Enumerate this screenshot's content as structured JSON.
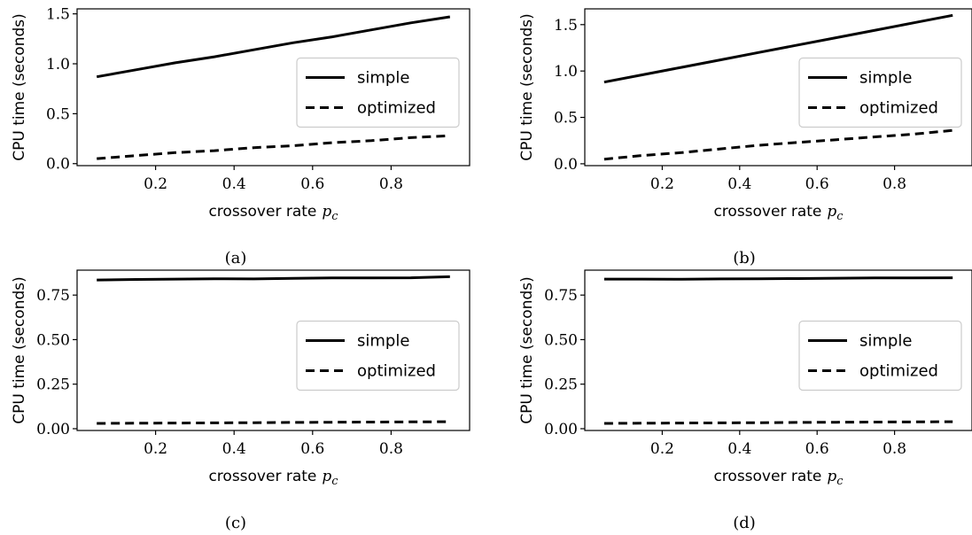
{
  "chart_data": [
    {
      "type": "line",
      "caption": "(a)",
      "xlabel": "crossover rate",
      "xlabel_symbol": "p",
      "xlabel_sub": "c",
      "ylabel": "CPU time (seconds)",
      "xlim": [
        0.0,
        1.0
      ],
      "ylim": [
        -0.02,
        1.55
      ],
      "xticks": [
        0.2,
        0.4,
        0.6,
        0.8
      ],
      "xtick_labels": [
        "0.2",
        "0.4",
        "0.6",
        "0.8"
      ],
      "yticks": [
        0.0,
        0.5,
        1.0,
        1.5
      ],
      "ytick_labels": [
        "0.0",
        "0.5",
        "1.0",
        "1.5"
      ],
      "legend_position": "center-right",
      "series": [
        {
          "name": "simple",
          "style": "solid",
          "x": [
            0.05,
            0.15,
            0.25,
            0.35,
            0.45,
            0.55,
            0.65,
            0.75,
            0.85,
            0.95
          ],
          "y": [
            0.87,
            0.94,
            1.01,
            1.07,
            1.14,
            1.21,
            1.27,
            1.34,
            1.41,
            1.47
          ]
        },
        {
          "name": "optimized",
          "style": "dashed",
          "x": [
            0.05,
            0.15,
            0.25,
            0.35,
            0.45,
            0.55,
            0.65,
            0.75,
            0.85,
            0.95
          ],
          "y": [
            0.05,
            0.08,
            0.11,
            0.13,
            0.16,
            0.18,
            0.21,
            0.23,
            0.26,
            0.28
          ]
        }
      ]
    },
    {
      "type": "line",
      "caption": "(b)",
      "xlabel": "crossover rate",
      "xlabel_symbol": "p",
      "xlabel_sub": "c",
      "ylabel": "CPU time (seconds)",
      "xlim": [
        0.0,
        1.0
      ],
      "ylim": [
        -0.02,
        1.67
      ],
      "xticks": [
        0.2,
        0.4,
        0.6,
        0.8
      ],
      "xtick_labels": [
        "0.2",
        "0.4",
        "0.6",
        "0.8"
      ],
      "yticks": [
        0.0,
        0.5,
        1.0,
        1.5
      ],
      "ytick_labels": [
        "0.0",
        "0.5",
        "1.0",
        "1.5"
      ],
      "legend_position": "center-right",
      "series": [
        {
          "name": "simple",
          "style": "solid",
          "x": [
            0.05,
            0.15,
            0.25,
            0.35,
            0.45,
            0.55,
            0.65,
            0.75,
            0.85,
            0.95
          ],
          "y": [
            0.88,
            0.96,
            1.04,
            1.12,
            1.2,
            1.28,
            1.36,
            1.44,
            1.52,
            1.6
          ]
        },
        {
          "name": "optimized",
          "style": "dashed",
          "x": [
            0.05,
            0.15,
            0.25,
            0.35,
            0.45,
            0.55,
            0.65,
            0.75,
            0.85,
            0.95
          ],
          "y": [
            0.05,
            0.09,
            0.12,
            0.16,
            0.2,
            0.23,
            0.26,
            0.29,
            0.32,
            0.36
          ]
        }
      ]
    },
    {
      "type": "line",
      "caption": "(c)",
      "xlabel": "crossover rate",
      "xlabel_symbol": "p",
      "xlabel_sub": "c",
      "ylabel": "CPU time (seconds)",
      "xlim": [
        0.0,
        1.0
      ],
      "ylim": [
        -0.01,
        0.89
      ],
      "xticks": [
        0.2,
        0.4,
        0.6,
        0.8
      ],
      "xtick_labels": [
        "0.2",
        "0.4",
        "0.6",
        "0.8"
      ],
      "yticks": [
        0.0,
        0.25,
        0.5,
        0.75
      ],
      "ytick_labels": [
        "0.00",
        "0.25",
        "0.50",
        "0.75"
      ],
      "legend_position": "center-right",
      "series": [
        {
          "name": "simple",
          "style": "solid",
          "x": [
            0.05,
            0.15,
            0.25,
            0.35,
            0.45,
            0.55,
            0.65,
            0.75,
            0.85,
            0.95
          ],
          "y": [
            0.835,
            0.838,
            0.84,
            0.842,
            0.841,
            0.844,
            0.846,
            0.846,
            0.847,
            0.853
          ]
        },
        {
          "name": "optimized",
          "style": "dashed",
          "x": [
            0.05,
            0.15,
            0.25,
            0.35,
            0.45,
            0.55,
            0.65,
            0.75,
            0.85,
            0.95
          ],
          "y": [
            0.03,
            0.031,
            0.032,
            0.033,
            0.034,
            0.035,
            0.036,
            0.037,
            0.038,
            0.039
          ]
        }
      ]
    },
    {
      "type": "line",
      "caption": "(d)",
      "xlabel": "crossover rate",
      "xlabel_symbol": "p",
      "xlabel_sub": "c",
      "ylabel": "CPU time (seconds)",
      "xlim": [
        0.0,
        1.0
      ],
      "ylim": [
        -0.01,
        0.89
      ],
      "xticks": [
        0.2,
        0.4,
        0.6,
        0.8
      ],
      "xtick_labels": [
        "0.2",
        "0.4",
        "0.6",
        "0.8"
      ],
      "yticks": [
        0.0,
        0.25,
        0.5,
        0.75
      ],
      "ytick_labels": [
        "0.00",
        "0.25",
        "0.50",
        "0.75"
      ],
      "legend_position": "center-right",
      "series": [
        {
          "name": "simple",
          "style": "solid",
          "x": [
            0.05,
            0.15,
            0.25,
            0.35,
            0.45,
            0.55,
            0.65,
            0.75,
            0.85,
            0.95
          ],
          "y": [
            0.84,
            0.84,
            0.839,
            0.841,
            0.842,
            0.843,
            0.845,
            0.846,
            0.846,
            0.847
          ]
        },
        {
          "name": "optimized",
          "style": "dashed",
          "x": [
            0.05,
            0.15,
            0.25,
            0.35,
            0.45,
            0.55,
            0.65,
            0.75,
            0.85,
            0.95
          ],
          "y": [
            0.03,
            0.031,
            0.032,
            0.033,
            0.034,
            0.035,
            0.036,
            0.037,
            0.038,
            0.039
          ]
        }
      ]
    }
  ],
  "colors": {
    "line": "#000000",
    "axes": "#000000",
    "legend_border": "#cccccc",
    "background": "#ffffff"
  }
}
